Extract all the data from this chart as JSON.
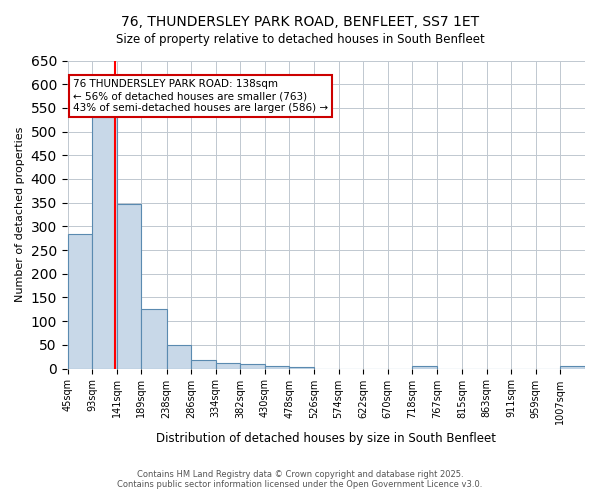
{
  "title_line1": "76, THUNDERSLEY PARK ROAD, BENFLEET, SS7 1ET",
  "title_line2": "Size of property relative to detached houses in South Benfleet",
  "xlabel": "Distribution of detached houses by size in South Benfleet",
  "ylabel": "Number of detached properties",
  "bin_labels": [
    "45sqm",
    "93sqm",
    "141sqm",
    "189sqm",
    "238sqm",
    "286sqm",
    "334sqm",
    "382sqm",
    "430sqm",
    "478sqm",
    "526sqm",
    "574sqm",
    "622sqm",
    "670sqm",
    "718sqm",
    "767sqm",
    "815sqm",
    "863sqm",
    "911sqm",
    "959sqm",
    "1007sqm"
  ],
  "bin_edges": [
    45,
    93,
    141,
    189,
    238,
    286,
    334,
    382,
    430,
    478,
    526,
    574,
    622,
    670,
    718,
    767,
    815,
    863,
    911,
    959,
    1007,
    1055
  ],
  "bar_values": [
    283,
    530,
    348,
    125,
    50,
    18,
    11,
    10,
    6,
    4,
    0,
    0,
    0,
    0,
    5,
    0,
    0,
    0,
    0,
    0,
    5
  ],
  "bar_color": "#c8d8e8",
  "bar_edge_color": "#5a8ab0",
  "red_line_x": 138,
  "red_line_color": "#ff0000",
  "annotation_text": "76 THUNDERSLEY PARK ROAD: 138sqm\n← 56% of detached houses are smaller (763)\n43% of semi-detached houses are larger (586) →",
  "annotation_box_color": "#ffffff",
  "annotation_box_edge_color": "#cc0000",
  "ylim": [
    0,
    650
  ],
  "yticks": [
    0,
    50,
    100,
    150,
    200,
    250,
    300,
    350,
    400,
    450,
    500,
    550,
    600,
    650
  ],
  "footer_line1": "Contains HM Land Registry data © Crown copyright and database right 2025.",
  "footer_line2": "Contains public sector information licensed under the Open Government Licence v3.0.",
  "background_color": "#ffffff",
  "grid_color": "#c0c8d0"
}
